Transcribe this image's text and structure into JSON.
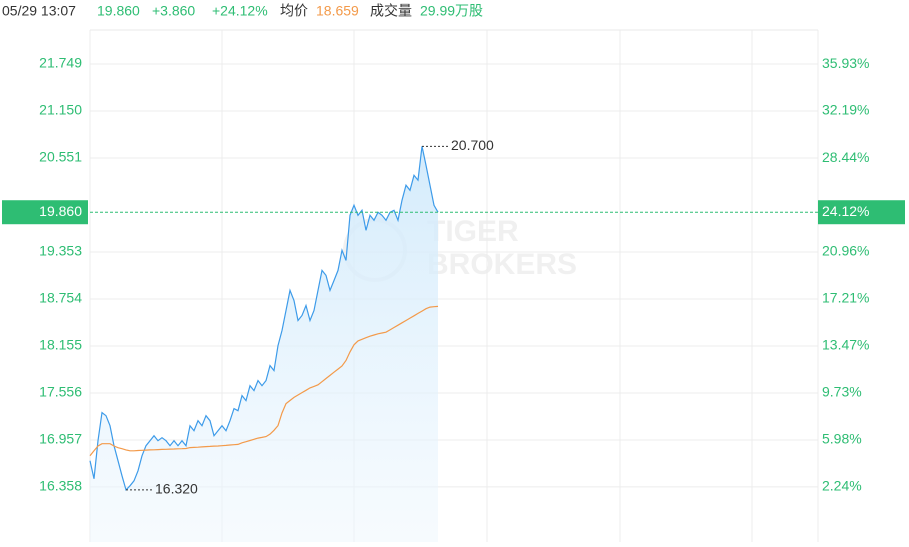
{
  "chart_data": {
    "type": "line",
    "header": {
      "time": "05/29 13:07",
      "price": "19.860",
      "change": "+3.860",
      "change_pct": "+24.12%",
      "avg_label": "均价",
      "avg": "18.659",
      "volume_label": "成交量",
      "volume": "29.99万股"
    },
    "watermark": [
      "TIGER",
      "BROKERS"
    ],
    "ylim": [
      15.656,
      22.183
    ],
    "yticks": [
      21.749,
      {
        "value": 21.15,
        "label": "21.150"
      },
      20.551,
      19.353,
      18.754,
      18.155,
      17.556,
      16.957,
      16.358
    ],
    "y2lim": [
      -2.15,
      38.644
    ],
    "y2ticks": [
      {
        "value": 35.93,
        "label": "35.93%"
      },
      {
        "value": 32.19,
        "label": "32.19%"
      },
      {
        "value": 28.44,
        "label": "28.44%"
      },
      {
        "value": 20.96,
        "label": "20.96%"
      },
      {
        "value": 17.21,
        "label": "17.21%"
      },
      {
        "value": 13.47,
        "label": "13.47%"
      },
      {
        "value": 9.73,
        "label": "9.73%"
      },
      {
        "value": 5.98,
        "label": "5.98%"
      },
      {
        "value": 2.24,
        "label": "2.24%"
      }
    ],
    "last": {
      "value": 19.86,
      "label": "19.860",
      "pct_label": "24.12%"
    },
    "max_label": "20.700",
    "min_label": "16.320",
    "grid": true,
    "series": [
      {
        "name": "price",
        "color": "#3d9be9",
        "values": [
          16.692,
          16.462,
          16.947,
          17.305,
          17.266,
          17.139,
          16.883,
          16.692,
          16.5,
          16.32,
          16.372,
          16.436,
          16.564,
          16.755,
          16.883,
          16.947,
          17.011,
          16.947,
          16.985,
          16.947,
          16.883,
          16.947,
          16.883,
          16.947,
          16.883,
          17.139,
          17.075,
          17.202,
          17.139,
          17.266,
          17.202,
          17.011,
          17.075,
          17.139,
          17.075,
          17.202,
          17.356,
          17.33,
          17.522,
          17.458,
          17.649,
          17.586,
          17.713,
          17.649,
          17.713,
          17.905,
          17.841,
          18.16,
          18.352,
          18.607,
          18.863,
          18.735,
          18.48,
          18.543,
          18.671,
          18.48,
          18.607,
          18.863,
          19.118,
          19.054,
          18.863,
          18.99,
          19.118,
          19.374,
          19.246,
          19.821,
          19.948,
          19.821,
          19.884,
          19.629,
          19.821,
          19.757,
          19.859,
          19.821,
          19.757,
          19.859,
          19.884,
          19.757,
          20.012,
          20.204,
          20.14,
          20.331,
          20.268,
          20.7,
          20.459,
          20.204,
          19.948,
          19.86
        ]
      },
      {
        "name": "average",
        "color": "#f39a4a",
        "values": [
          16.755,
          16.82,
          16.88,
          16.909,
          16.909,
          16.909,
          16.88,
          16.858,
          16.845,
          16.83,
          16.819,
          16.819,
          16.822,
          16.825,
          16.828,
          16.83,
          16.832,
          16.834,
          16.836,
          16.838,
          16.84,
          16.842,
          16.844,
          16.846,
          16.848,
          16.86,
          16.862,
          16.865,
          16.868,
          16.872,
          16.875,
          16.878,
          16.88,
          16.884,
          16.888,
          16.892,
          16.896,
          16.9,
          16.92,
          16.935,
          16.95,
          16.965,
          16.98,
          16.99,
          17.0,
          17.03,
          17.08,
          17.14,
          17.3,
          17.42,
          17.46,
          17.5,
          17.53,
          17.56,
          17.59,
          17.62,
          17.64,
          17.66,
          17.7,
          17.74,
          17.78,
          17.82,
          17.86,
          17.9,
          17.97,
          18.08,
          18.17,
          18.22,
          18.24,
          18.26,
          18.28,
          18.295,
          18.31,
          18.32,
          18.33,
          18.36,
          18.39,
          18.42,
          18.45,
          18.48,
          18.51,
          18.54,
          18.57,
          18.6,
          18.63,
          18.65,
          18.655,
          18.659
        ]
      }
    ]
  }
}
